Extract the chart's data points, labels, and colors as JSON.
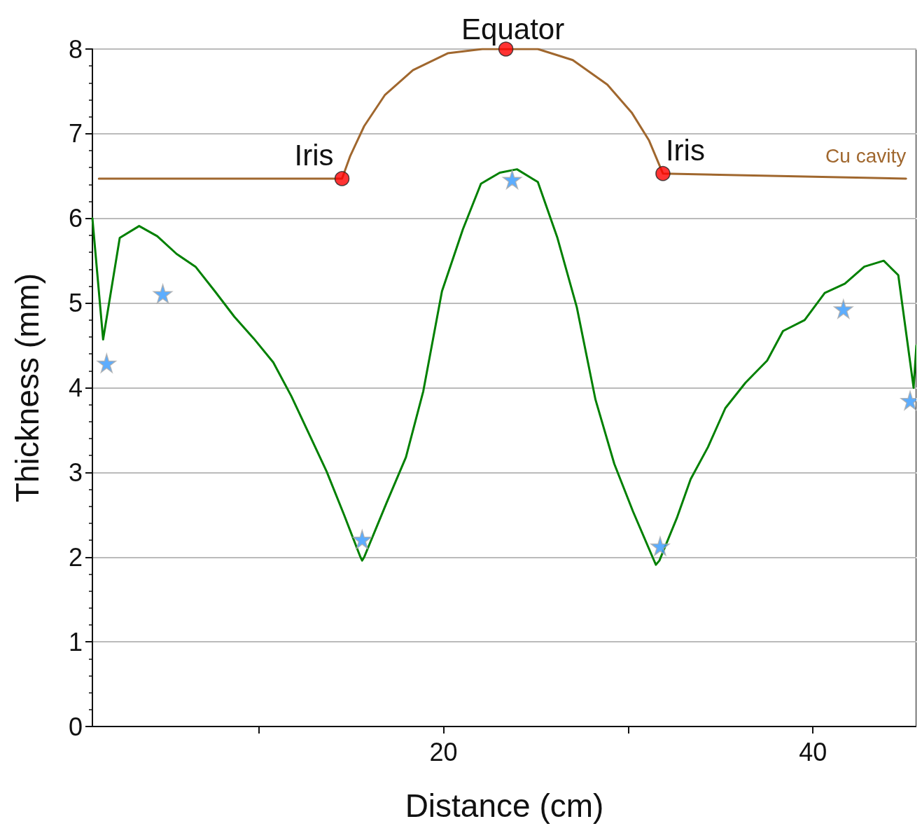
{
  "chart_data": {
    "type": "line",
    "xlabel": "Distance (cm)",
    "ylabel": "Thickness (mm)",
    "xlim": [
      1,
      45.6
    ],
    "xticks": [
      {
        "value": 10,
        "label": null
      },
      20,
      {
        "value": 30,
        "label": null
      },
      40
    ],
    "ylim": [
      0,
      8
    ],
    "yticks": [
      0,
      1,
      2,
      3,
      4,
      5,
      6,
      7,
      8
    ],
    "grid": "y",
    "legend": false,
    "annotations": [
      {
        "text": "Iris",
        "x": 14.51,
        "y": 6.47
      },
      {
        "text": "Equator",
        "x": 23.38,
        "y": 8.0
      },
      {
        "text": "Iris",
        "x": 31.88,
        "y": 6.53
      }
    ],
    "series": [
      {
        "color": "#008000",
        "marker": "none",
        "x": [
          1.0,
          1.58,
          2.48,
          3.53,
          4.51,
          5.56,
          6.58,
          7.63,
          8.68,
          9.74,
          10.79,
          11.77,
          12.78,
          13.68,
          14.62,
          15.49,
          15.6,
          15.71,
          16.92,
          17.97,
          18.91,
          19.92,
          21.05,
          22.03,
          23.05,
          23.98,
          25.11,
          26.17,
          27.22,
          28.23,
          29.25,
          30.26,
          31.32,
          31.5,
          31.69,
          32.63,
          33.38,
          34.32,
          35.26,
          36.35,
          37.52,
          38.38,
          39.55,
          40.64,
          41.73,
          42.78,
          43.83,
          44.62,
          45.45,
          45.6
        ],
        "values": [
          6.0,
          4.57,
          5.77,
          5.91,
          5.79,
          5.58,
          5.43,
          5.14,
          4.84,
          4.58,
          4.3,
          3.9,
          3.43,
          3.01,
          2.5,
          2.01,
          1.96,
          2.0,
          2.64,
          3.18,
          3.96,
          5.14,
          5.87,
          6.41,
          6.54,
          6.58,
          6.43,
          5.77,
          4.95,
          3.86,
          3.1,
          2.54,
          2.0,
          1.91,
          1.96,
          2.46,
          2.92,
          3.3,
          3.76,
          4.06,
          4.32,
          4.67,
          4.8,
          5.12,
          5.23,
          5.43,
          5.5,
          5.33,
          4.0,
          4.5
        ]
      },
      {
        "type": "scatter",
        "color": "#3399ff",
        "marker": "star",
        "x": [
          1.77,
          4.81,
          15.6,
          23.72,
          31.73,
          41.65,
          45.26
        ],
        "values": [
          4.29,
          5.11,
          2.21,
          6.46,
          2.13,
          4.93,
          3.85
        ]
      },
      {
        "name": "Cu cavity",
        "color": "#a0672e",
        "marker": "none",
        "x": [
          1.35,
          14.51,
          14.96,
          15.71,
          16.84,
          18.35,
          20.23,
          22.11,
          23.38,
          25.11,
          27.0,
          28.87,
          30.19,
          31.13,
          31.88,
          45.04
        ],
        "values": [
          6.47,
          6.47,
          6.74,
          7.09,
          7.46,
          7.75,
          7.95,
          8.0,
          8.0,
          8.0,
          7.87,
          7.58,
          7.25,
          6.92,
          6.53,
          6.47
        ]
      },
      {
        "type": "scatter",
        "color": "#ff0000",
        "marker": "circle",
        "x": [
          14.51,
          23.38,
          31.88
        ],
        "values": [
          6.47,
          8.0,
          6.53
        ]
      }
    ]
  }
}
